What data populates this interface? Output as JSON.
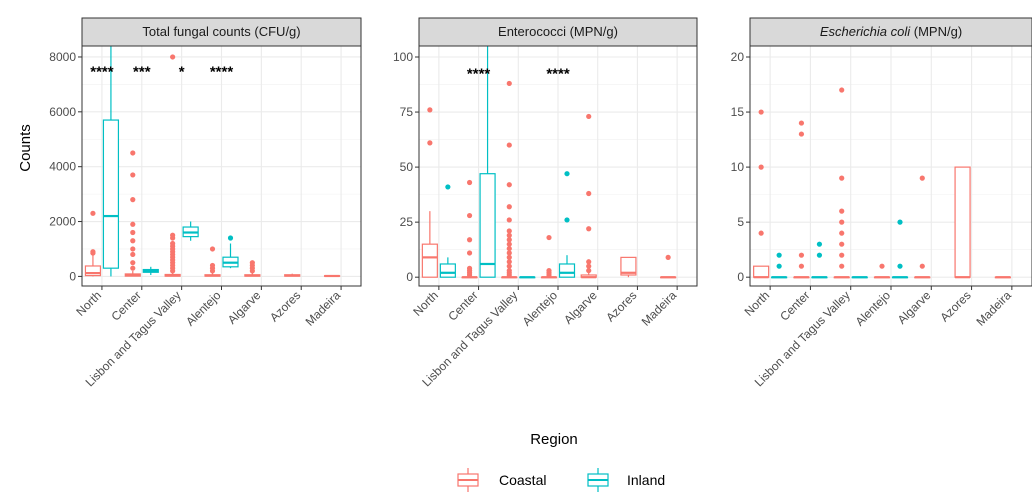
{
  "chart_data": {
    "type": "boxplot",
    "xlabel": "Region",
    "ylabel": "Counts",
    "categories": [
      "North",
      "Center",
      "Lisbon and Tagus Valley",
      "Alentejo",
      "Algarve",
      "Azores",
      "Madeira"
    ],
    "legend": {
      "position": "bottom",
      "entries": [
        {
          "name": "Coastal",
          "color": "#F8766D"
        },
        {
          "name": "Inland",
          "color": "#00BFC4"
        }
      ]
    },
    "grid": true,
    "panels": [
      {
        "title": "Total fungal counts (CFU/g)",
        "title_italic": "",
        "title_rest": "",
        "ylim": [
          -350,
          8400
        ],
        "yticks": [
          0,
          2000,
          4000,
          6000,
          8000
        ],
        "significance": [
          {
            "category": "North",
            "label": "****"
          },
          {
            "category": "Center",
            "label": "***"
          },
          {
            "category": "Lisbon and Tagus Valley",
            "label": "*"
          },
          {
            "category": "Alentejo",
            "label": "****"
          }
        ],
        "sig_y": 7500,
        "series": [
          {
            "name": "Coastal",
            "boxes": [
              {
                "category": "North",
                "stats": [
                  0,
                  30,
                  120,
                  380,
                  800
                ],
                "outliers": [
                  850,
                  900,
                  2300
                ]
              },
              {
                "category": "Center",
                "stats": [
                  0,
                  10,
                  40,
                  90,
                  200
                ],
                "outliers": [
                  300,
                  500,
                  800,
                  1000,
                  1300,
                  1600,
                  1900,
                  2800,
                  3700,
                  4500
                ]
              },
              {
                "category": "Lisbon and Tagus Valley",
                "stats": [
                  0,
                  10,
                  30,
                  70,
                  150
                ],
                "outliers": [
                  200,
                  300,
                  400,
                  500,
                  600,
                  700,
                  800,
                  900,
                  1000,
                  1100,
                  1200,
                  1400,
                  1500,
                  8000
                ]
              },
              {
                "category": "Alentejo",
                "stats": [
                  0,
                  10,
                  30,
                  60,
                  130
                ],
                "outliers": [
                  200,
                  300,
                  400,
                  1000
                ]
              },
              {
                "category": "Algarve",
                "stats": [
                  0,
                  10,
                  30,
                  60,
                  130
                ],
                "outliers": [
                  200,
                  300,
                  400,
                  500
                ]
              },
              {
                "category": "Azores",
                "stats": [
                  0,
                  10,
                  30,
                  60,
                  100
                ],
                "outliers": []
              },
              {
                "category": "Madeira",
                "stats": [
                  0,
                  5,
                  15,
                  25,
                  50
                ],
                "outliers": []
              }
            ]
          },
          {
            "name": "Inland",
            "boxes": [
              {
                "category": "North",
                "stats": [
                  0,
                  300,
                  2200,
                  5700,
                  8400
                ],
                "outliers": []
              },
              {
                "category": "Center",
                "stats": [
                  50,
                  150,
                  200,
                  250,
                  350
                ],
                "outliers": []
              },
              {
                "category": "Lisbon and Tagus Valley",
                "stats": [
                  1300,
                  1450,
                  1600,
                  1800,
                  2000
                ],
                "outliers": []
              },
              {
                "category": "Alentejo",
                "stats": [
                  300,
                  350,
                  500,
                  700,
                  1200
                ],
                "outliers": [
                  1400
                ]
              },
              {
                "category": "Algarve",
                "stats": null,
                "outliers": []
              },
              {
                "category": "Azores",
                "stats": null,
                "outliers": []
              },
              {
                "category": "Madeira",
                "stats": null,
                "outliers": []
              }
            ]
          }
        ]
      },
      {
        "title": "Enterococci (MPN/g)",
        "title_italic": "",
        "title_rest": "",
        "ylim": [
          -4,
          105
        ],
        "yticks": [
          0,
          25,
          50,
          75,
          100
        ],
        "significance": [
          {
            "category": "Center",
            "label": "****"
          },
          {
            "category": "Alentejo",
            "label": "****"
          }
        ],
        "sig_y": 93,
        "series": [
          {
            "name": "Coastal",
            "boxes": [
              {
                "category": "North",
                "stats": [
                  0,
                  0,
                  9,
                  15,
                  30
                ],
                "outliers": [
                  61,
                  76
                ]
              },
              {
                "category": "Center",
                "stats": [
                  0,
                  0,
                  0,
                  0,
                  0
                ],
                "outliers": [
                  1,
                  2,
                  3,
                  4,
                  11,
                  17,
                  28,
                  43
                ]
              },
              {
                "category": "Lisbon and Tagus Valley",
                "stats": [
                  0,
                  0,
                  0,
                  0,
                  0
                ],
                "outliers": [
                  1,
                  2,
                  3,
                  5,
                  7,
                  9,
                  11,
                  13,
                  15,
                  17,
                  19,
                  21,
                  26,
                  32,
                  42,
                  60,
                  88
                ]
              },
              {
                "category": "Alentejo",
                "stats": [
                  0,
                  0,
                  0,
                  0,
                  0
                ],
                "outliers": [
                  1,
                  2,
                  3,
                  18
                ]
              },
              {
                "category": "Algarve",
                "stats": [
                  0,
                  0,
                  0,
                  1,
                  2
                ],
                "outliers": [
                  3,
                  5,
                  7,
                  22,
                  38,
                  73
                ]
              },
              {
                "category": "Azores",
                "stats": [
                  0,
                  1,
                  2,
                  9,
                  9
                ],
                "outliers": []
              },
              {
                "category": "Madeira",
                "stats": [
                  0,
                  0,
                  0,
                  0,
                  0
                ],
                "outliers": [
                  9
                ]
              }
            ]
          },
          {
            "name": "Inland",
            "boxes": [
              {
                "category": "North",
                "stats": [
                  0,
                  0,
                  2,
                  6,
                  9
                ],
                "outliers": [
                  41
                ]
              },
              {
                "category": "Center",
                "stats": [
                  0,
                  0,
                  6,
                  47,
                  105
                ],
                "outliers": []
              },
              {
                "category": "Lisbon and Tagus Valley",
                "stats": [
                  0,
                  0,
                  0,
                  0,
                  0
                ],
                "outliers": []
              },
              {
                "category": "Alentejo",
                "stats": [
                  0,
                  0,
                  2,
                  6,
                  10
                ],
                "outliers": [
                  26,
                  47
                ]
              },
              {
                "category": "Algarve",
                "stats": null,
                "outliers": []
              },
              {
                "category": "Azores",
                "stats": null,
                "outliers": []
              },
              {
                "category": "Madeira",
                "stats": null,
                "outliers": []
              }
            ]
          }
        ]
      },
      {
        "title": "",
        "title_italic": "Escherichia coli",
        "title_rest": " (MPN/g)",
        "ylim": [
          -0.8,
          21
        ],
        "yticks": [
          0,
          5,
          10,
          15,
          20
        ],
        "significance": [],
        "sig_y": 18,
        "series": [
          {
            "name": "Coastal",
            "boxes": [
              {
                "category": "North",
                "stats": [
                  0,
                  0,
                  0,
                  1,
                  1
                ],
                "outliers": [
                  4,
                  10,
                  15
                ]
              },
              {
                "category": "Center",
                "stats": [
                  0,
                  0,
                  0,
                  0,
                  0
                ],
                "outliers": [
                  1,
                  2,
                  13,
                  14
                ]
              },
              {
                "category": "Lisbon and Tagus Valley",
                "stats": [
                  0,
                  0,
                  0,
                  0,
                  0
                ],
                "outliers": [
                  1,
                  2,
                  3,
                  4,
                  5,
                  6,
                  9,
                  17
                ]
              },
              {
                "category": "Alentejo",
                "stats": [
                  0,
                  0,
                  0,
                  0,
                  0
                ],
                "outliers": [
                  1
                ]
              },
              {
                "category": "Algarve",
                "stats": [
                  0,
                  0,
                  0,
                  0,
                  0
                ],
                "outliers": [
                  1,
                  9
                ]
              },
              {
                "category": "Azores",
                "stats": [
                  0,
                  0,
                  0,
                  10,
                  10
                ],
                "outliers": []
              },
              {
                "category": "Madeira",
                "stats": [
                  0,
                  0,
                  0,
                  0,
                  0
                ],
                "outliers": []
              }
            ]
          },
          {
            "name": "Inland",
            "boxes": [
              {
                "category": "North",
                "stats": [
                  0,
                  0,
                  0,
                  0,
                  0
                ],
                "outliers": [
                  1,
                  2
                ]
              },
              {
                "category": "Center",
                "stats": [
                  0,
                  0,
                  0,
                  0,
                  0
                ],
                "outliers": [
                  2,
                  3
                ]
              },
              {
                "category": "Lisbon and Tagus Valley",
                "stats": [
                  0,
                  0,
                  0,
                  0,
                  0
                ],
                "outliers": []
              },
              {
                "category": "Alentejo",
                "stats": [
                  0,
                  0,
                  0,
                  0,
                  0
                ],
                "outliers": [
                  1,
                  5
                ]
              },
              {
                "category": "Algarve",
                "stats": null,
                "outliers": []
              },
              {
                "category": "Azores",
                "stats": null,
                "outliers": []
              },
              {
                "category": "Madeira",
                "stats": null,
                "outliers": []
              }
            ]
          }
        ]
      }
    ]
  }
}
